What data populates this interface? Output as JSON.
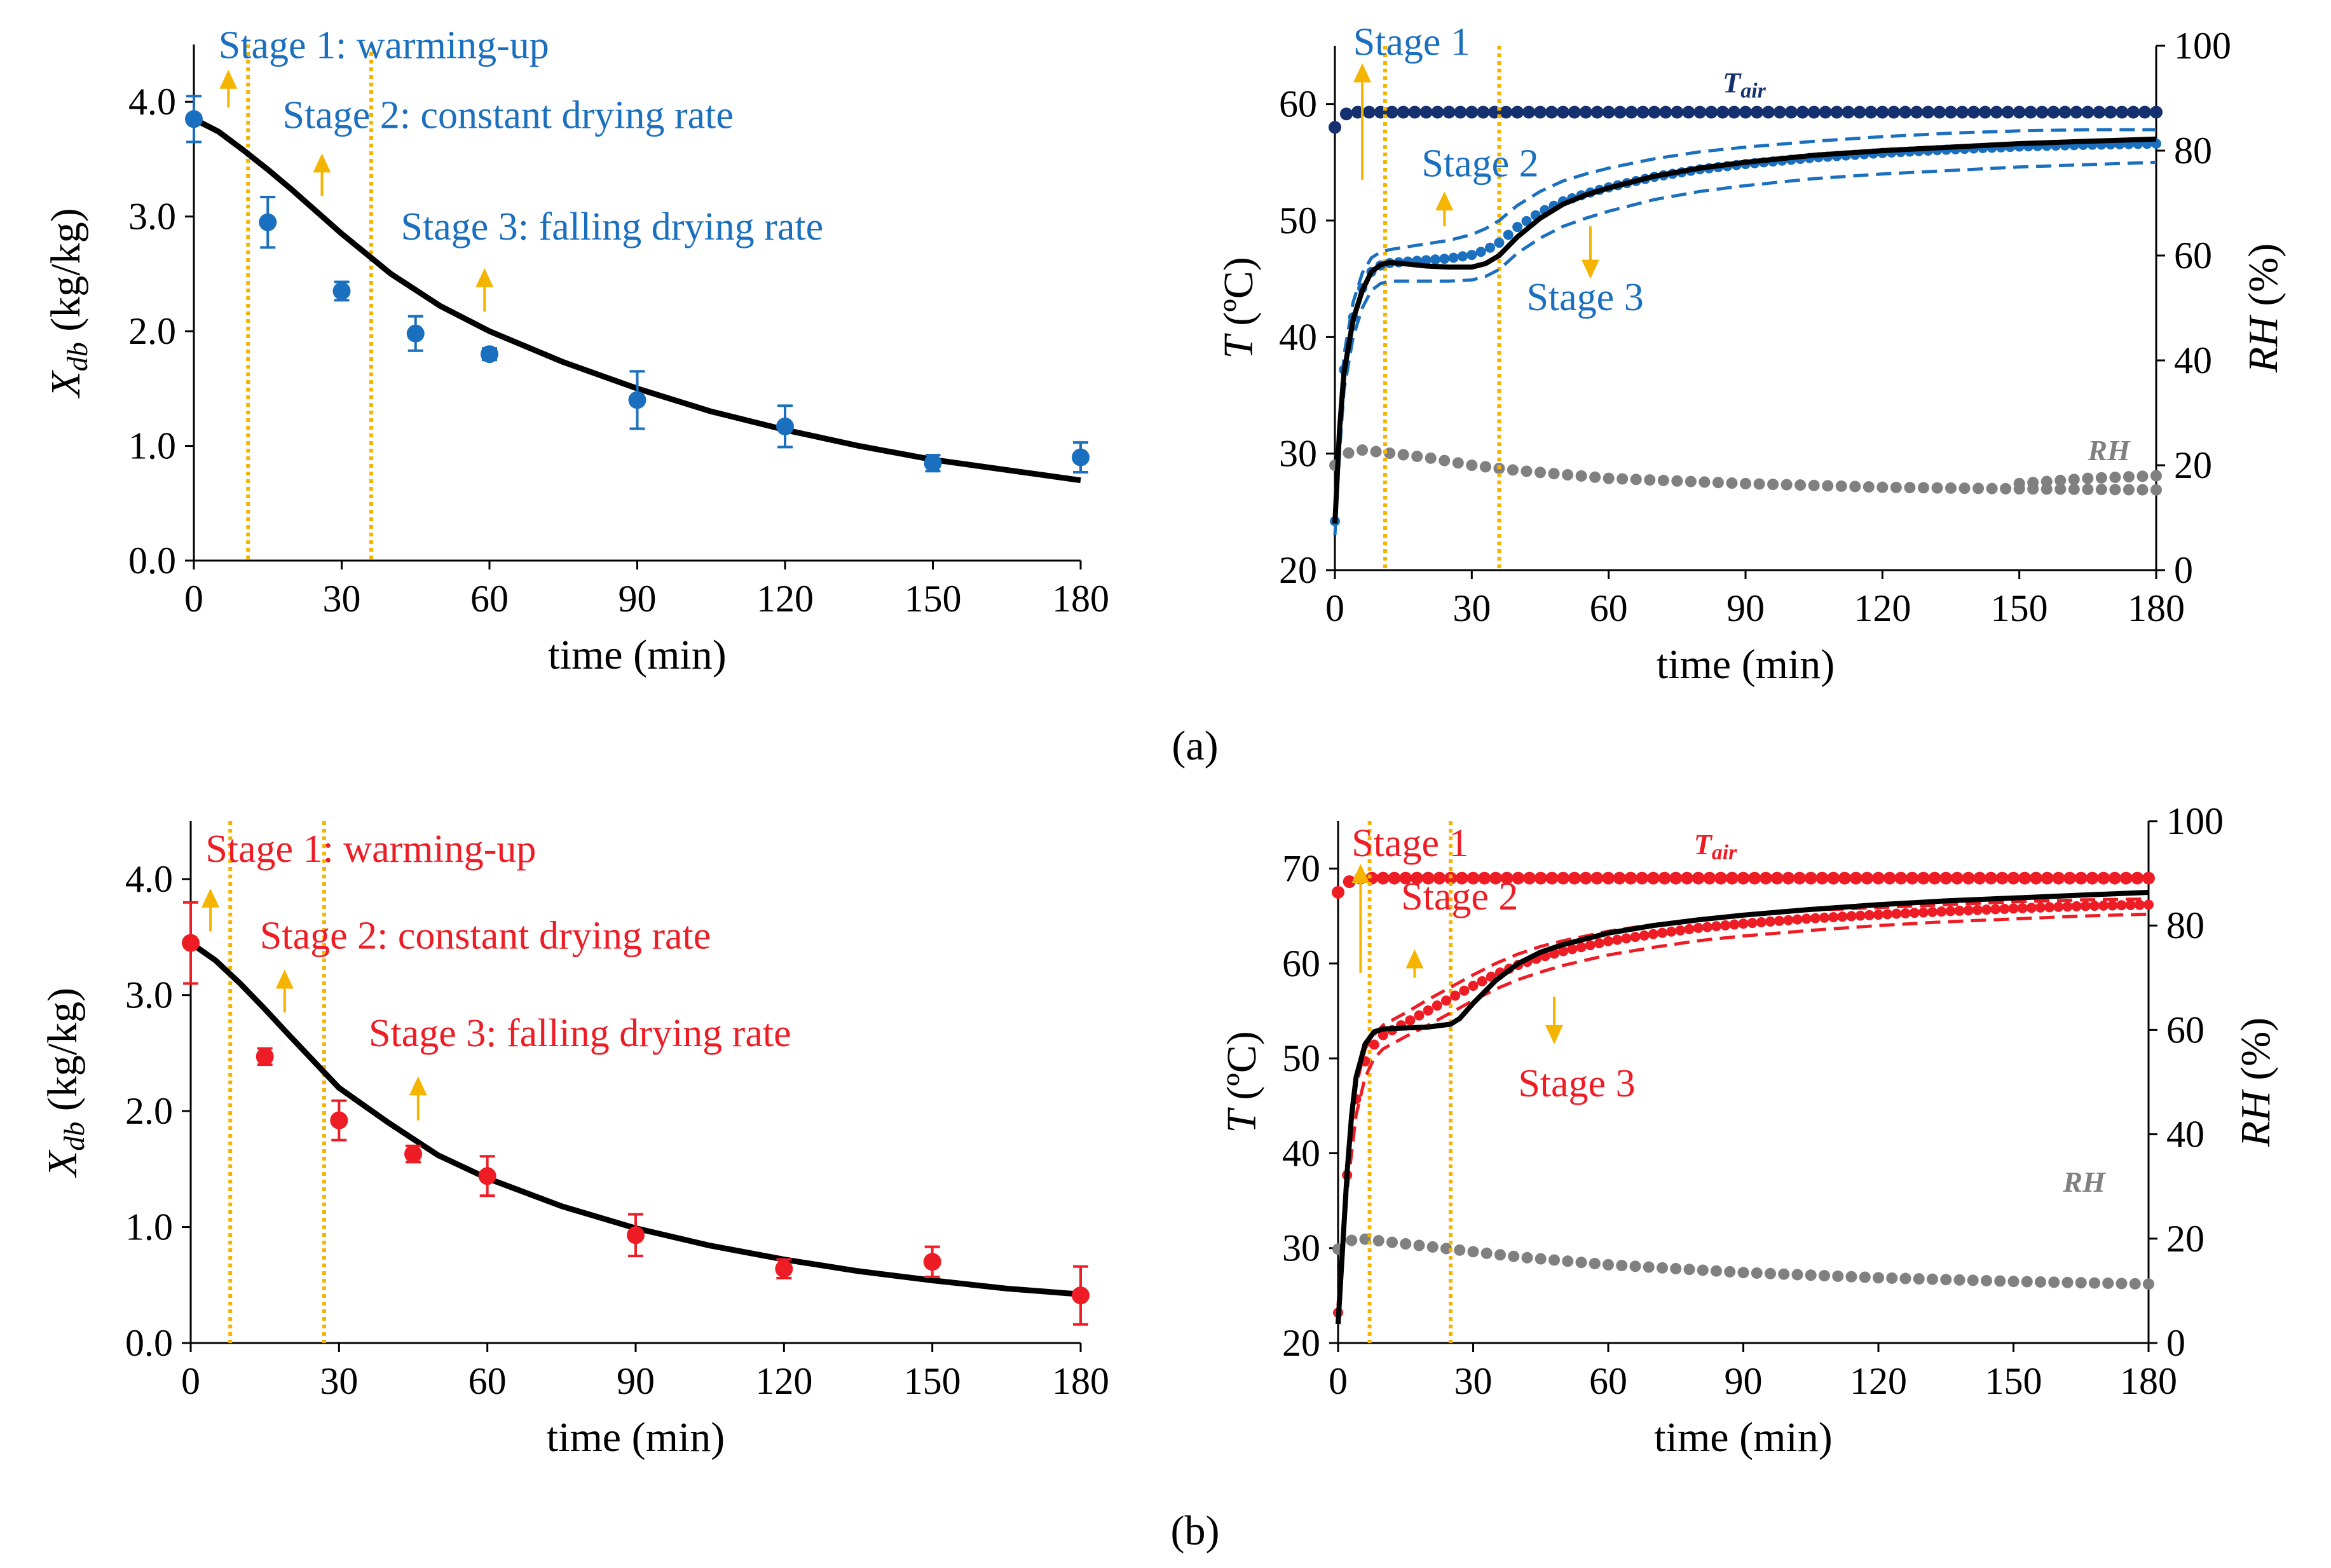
{
  "figure": {
    "panel_a_label": "(a)",
    "panel_b_label": "(b)"
  },
  "chart_data": [
    {
      "id": "a_moisture",
      "type": "scatter",
      "title": "",
      "xlabel": "time (min)",
      "ylabel_main": "X",
      "ylabel_sub": "db",
      "ylabel_unit": " (kg/kg)",
      "xlim": [
        0,
        180
      ],
      "ylim": [
        0,
        4.5
      ],
      "xticks": [
        0,
        30,
        60,
        90,
        120,
        150,
        180
      ],
      "yticks": [
        0,
        1,
        2,
        3,
        4
      ],
      "ytick_labels": [
        "0.0",
        "1.0",
        "2.0",
        "3.0",
        "4.0"
      ],
      "color": "#1a6fbf",
      "stage_lines": [
        11,
        36
      ],
      "stage_labels": [
        {
          "text": "Stage 1: warming-up",
          "x": 5,
          "y": 4.38
        },
        {
          "text": "Stage 2: constant drying rate",
          "x": 18,
          "y": 3.77
        },
        {
          "text": "Stage 3: falling drying rate",
          "x": 42,
          "y": 2.8
        }
      ],
      "arrows": [
        {
          "x": 7,
          "y1": 3.95,
          "y2": 4.28
        },
        {
          "x": 26,
          "y1": 3.18,
          "y2": 3.55
        },
        {
          "x": 59,
          "y1": 2.17,
          "y2": 2.55
        }
      ],
      "series": [
        {
          "name": "experimental",
          "x": [
            0,
            15,
            30,
            45,
            60,
            90,
            120,
            150,
            180
          ],
          "y": [
            3.85,
            2.95,
            2.35,
            1.98,
            1.8,
            1.4,
            1.17,
            0.85,
            0.9
          ],
          "err": [
            0.2,
            0.22,
            0.08,
            0.15,
            0.05,
            0.25,
            0.18,
            0.07,
            0.13
          ]
        },
        {
          "name": "model",
          "x": [
            0,
            5,
            10,
            15,
            20,
            30,
            40,
            50,
            60,
            75,
            90,
            105,
            120,
            135,
            150,
            165,
            180
          ],
          "y": [
            3.85,
            3.74,
            3.58,
            3.41,
            3.23,
            2.85,
            2.5,
            2.22,
            2.0,
            1.73,
            1.5,
            1.3,
            1.14,
            1.0,
            0.88,
            0.79,
            0.7
          ]
        }
      ]
    },
    {
      "id": "a_temperature",
      "type": "line",
      "title": "",
      "xlabel": "time (min)",
      "ylabel_left": "T (ºC)",
      "ylabel_right": "RH (%)",
      "xlim": [
        0,
        180
      ],
      "ylim_left": [
        20,
        65
      ],
      "ylim_right": [
        0,
        100
      ],
      "xticks": [
        0,
        30,
        60,
        90,
        120,
        150,
        180
      ],
      "yticks_left": [
        20,
        30,
        40,
        50,
        60
      ],
      "yticks_right": [
        0,
        20,
        40,
        60,
        80,
        100
      ],
      "dark_color": "#14306e",
      "accent_color": "#1a6fbf",
      "rh_color": "#808080",
      "stage_lines": [
        11,
        36
      ],
      "stage_labels": [
        {
          "text": "Stage 1",
          "x": 4,
          "y": 64.2
        },
        {
          "text": "Stage 2",
          "x": 19,
          "y": 53.8
        },
        {
          "text": "Stage 3",
          "x": 42,
          "y": 42.3
        }
      ],
      "arrows": [
        {
          "x": 6,
          "y1": 53.5,
          "y2": 63.5
        },
        {
          "x": 24,
          "y1": 49.5,
          "y2": 52.5
        },
        {
          "x": 56,
          "y1": 49.5,
          "y2": 45.0
        }
      ],
      "tair_label_main": "T",
      "tair_label_sub": "air",
      "tair_label_pos": {
        "x": 85,
        "y": 61
      },
      "rh_label": "RH",
      "rh_label_pos": {
        "x": 165,
        "y": 21
      },
      "series": [
        {
          "name": "Tair",
          "x": [
            0,
            1,
            2,
            3,
            6,
            180
          ],
          "y": [
            58.0,
            58.5,
            59.0,
            59.3,
            59.3,
            59.3
          ]
        },
        {
          "name": "model",
          "x": [
            0,
            1,
            2,
            4,
            6,
            8,
            10,
            12,
            15,
            20,
            25,
            30,
            33,
            36,
            40,
            45,
            50,
            55,
            60,
            70,
            80,
            90,
            105,
            120,
            135,
            150,
            165,
            180
          ],
          "y": [
            24,
            32,
            37,
            41.5,
            44,
            45.6,
            46.2,
            46.4,
            46.3,
            46.1,
            46.0,
            46.0,
            46.3,
            47.0,
            48.6,
            50.2,
            51.4,
            52.2,
            52.8,
            53.8,
            54.5,
            55.0,
            55.6,
            56.0,
            56.3,
            56.6,
            56.8,
            57.0
          ]
        },
        {
          "name": "upper",
          "x": [
            0,
            1,
            2,
            4,
            6,
            8,
            10,
            12,
            15,
            20,
            25,
            30,
            33,
            36,
            40,
            45,
            50,
            55,
            60,
            70,
            80,
            90,
            105,
            120,
            135,
            150,
            165,
            180
          ],
          "y": [
            25,
            33,
            38.5,
            43,
            45.5,
            46.8,
            47.3,
            47.5,
            47.7,
            48.0,
            48.3,
            48.8,
            49.3,
            50.0,
            51.3,
            52.5,
            53.4,
            54.0,
            54.5,
            55.3,
            55.9,
            56.3,
            56.8,
            57.2,
            57.5,
            57.7,
            57.8,
            57.8
          ]
        },
        {
          "name": "lower",
          "x": [
            0,
            1,
            2,
            4,
            6,
            8,
            10,
            12,
            15,
            20,
            25,
            30,
            33,
            36,
            40,
            45,
            50,
            55,
            60,
            70,
            80,
            90,
            105,
            120,
            135,
            150,
            165,
            180
          ],
          "y": [
            23,
            30,
            35.5,
            40.0,
            42.5,
            44.0,
            44.6,
            44.8,
            44.8,
            44.8,
            44.8,
            44.9,
            45.2,
            45.8,
            47.2,
            48.5,
            49.5,
            50.2,
            50.8,
            51.8,
            52.5,
            53.0,
            53.6,
            54.0,
            54.3,
            54.6,
            54.8,
            55.0
          ]
        },
        {
          "name": "RH",
          "x": [
            0,
            2,
            5,
            10,
            20,
            30,
            40,
            60,
            90,
            120,
            150,
            180
          ],
          "y": [
            20,
            22,
            23,
            22.5,
            21.5,
            20,
            19,
            17.5,
            16.5,
            15.8,
            15.5,
            15.3
          ]
        },
        {
          "name": "RH2",
          "x": [
            150,
            165,
            180
          ],
          "y": [
            16.5,
            17.5,
            18
          ]
        }
      ]
    },
    {
      "id": "b_moisture",
      "type": "scatter",
      "title": "",
      "xlabel": "time (min)",
      "ylabel_main": "X",
      "ylabel_sub": "db",
      "ylabel_unit": " (kg/kg)",
      "xlim": [
        0,
        180
      ],
      "ylim": [
        0,
        4.5
      ],
      "xticks": [
        0,
        30,
        60,
        90,
        120,
        150,
        180
      ],
      "yticks": [
        0,
        1,
        2,
        3,
        4
      ],
      "ytick_labels": [
        "0.0",
        "1.0",
        "2.0",
        "3.0",
        "4.0"
      ],
      "color": "#ee1c24",
      "stage_lines": [
        8,
        27
      ],
      "stage_labels": [
        {
          "text": "Stage 1: warming-up",
          "x": 3,
          "y": 4.15
        },
        {
          "text": "Stage 2: constant drying rate",
          "x": 14,
          "y": 3.4
        },
        {
          "text": "Stage 3: falling drying rate",
          "x": 36,
          "y": 2.56
        }
      ],
      "arrows": [
        {
          "x": 4,
          "y1": 3.55,
          "y2": 3.92
        },
        {
          "x": 19,
          "y1": 2.85,
          "y2": 3.22
        },
        {
          "x": 46,
          "y1": 1.92,
          "y2": 2.3
        }
      ],
      "series": [
        {
          "name": "experimental",
          "x": [
            0,
            15,
            30,
            45,
            60,
            90,
            120,
            150,
            180
          ],
          "y": [
            3.45,
            2.47,
            1.92,
            1.63,
            1.44,
            0.93,
            0.64,
            0.7,
            0.41
          ],
          "err": [
            0.35,
            0.07,
            0.17,
            0.07,
            0.17,
            0.18,
            0.08,
            0.13,
            0.25
          ]
        },
        {
          "name": "model",
          "x": [
            0,
            5,
            10,
            15,
            20,
            30,
            40,
            50,
            60,
            75,
            90,
            105,
            120,
            135,
            150,
            165,
            180
          ],
          "y": [
            3.45,
            3.3,
            3.1,
            2.88,
            2.65,
            2.2,
            1.9,
            1.62,
            1.42,
            1.18,
            0.99,
            0.84,
            0.72,
            0.62,
            0.54,
            0.47,
            0.42
          ]
        }
      ]
    },
    {
      "id": "b_temperature",
      "type": "line",
      "title": "",
      "xlabel": "time (min)",
      "ylabel_left": "T (ºC)",
      "ylabel_right": "RH (%)",
      "xlim": [
        0,
        180
      ],
      "ylim_left": [
        20,
        75
      ],
      "ylim_right": [
        0,
        100
      ],
      "xticks": [
        0,
        30,
        60,
        90,
        120,
        150,
        180
      ],
      "yticks_left": [
        20,
        30,
        40,
        50,
        60,
        70
      ],
      "yticks_right": [
        0,
        20,
        40,
        60,
        80,
        100
      ],
      "dark_color": "#ee1c24",
      "accent_color": "#ee1c24",
      "rh_color": "#808080",
      "stage_lines": [
        7,
        25
      ],
      "stage_labels": [
        {
          "text": "Stage 1",
          "x": 3,
          "y": 71.3
        },
        {
          "text": "Stage 2",
          "x": 14,
          "y": 65.7
        },
        {
          "text": "Stage 3",
          "x": 40,
          "y": 46.0
        }
      ],
      "arrows": [
        {
          "x": 5,
          "y1": 59.0,
          "y2": 70.5
        },
        {
          "x": 17,
          "y1": 58.5,
          "y2": 61.5
        },
        {
          "x": 48,
          "y1": 56.5,
          "y2": 51.5
        }
      ],
      "tair_label_main": "T",
      "tair_label_sub": "air",
      "tair_label_pos": {
        "x": 79,
        "y": 71.5
      },
      "rh_label": "RH",
      "rh_label_pos": {
        "x": 161,
        "y": 29
      },
      "series": [
        {
          "name": "Tair",
          "x": [
            0,
            2,
            4,
            180
          ],
          "y": [
            67.5,
            68.5,
            69.0,
            69.0
          ]
        },
        {
          "name": "model",
          "x": [
            0,
            1,
            2,
            3,
            4,
            6,
            8,
            10,
            15,
            20,
            25,
            27,
            30,
            35,
            40,
            45,
            50,
            60,
            70,
            80,
            90,
            105,
            120,
            135,
            150,
            165,
            180
          ],
          "y": [
            22,
            30,
            38,
            44,
            48,
            51.5,
            52.8,
            53.1,
            53.2,
            53.3,
            53.6,
            54.2,
            55.8,
            58.2,
            60.0,
            61.2,
            62.0,
            63.2,
            64.0,
            64.6,
            65.1,
            65.7,
            66.2,
            66.6,
            66.9,
            67.2,
            67.5
          ]
        },
        {
          "name": "upper",
          "x": [
            0,
            2,
            4,
            6,
            8,
            10,
            15,
            20,
            25,
            30,
            35,
            40,
            45,
            50,
            60,
            70,
            80,
            90,
            105,
            120,
            135,
            150,
            165,
            180
          ],
          "y": [
            24,
            39,
            47,
            51,
            52.5,
            53.5,
            54.8,
            56.2,
            57.5,
            58.8,
            60.0,
            61.0,
            61.8,
            62.4,
            63.4,
            64.1,
            64.7,
            65.1,
            65.6,
            65.9,
            66.2,
            66.5,
            66.7,
            66.8
          ]
        },
        {
          "name": "lower",
          "x": [
            0,
            2,
            4,
            6,
            8,
            10,
            15,
            20,
            25,
            30,
            35,
            40,
            45,
            50,
            60,
            70,
            80,
            90,
            105,
            120,
            135,
            150,
            165,
            180
          ],
          "y": [
            22,
            36,
            44,
            48,
            50,
            51,
            52.3,
            53.5,
            54.8,
            56.1,
            57.3,
            58.3,
            59.1,
            59.8,
            60.9,
            61.7,
            62.4,
            62.9,
            63.5,
            64.0,
            64.4,
            64.7,
            65.0,
            65.2
          ]
        },
        {
          "name": "RH",
          "x": [
            0,
            2,
            5,
            10,
            20,
            30,
            40,
            60,
            90,
            120,
            150,
            180
          ],
          "y": [
            18,
            19.5,
            20,
            19.5,
            18.5,
            17.5,
            16.5,
            15,
            13.5,
            12.5,
            11.8,
            11.3
          ]
        }
      ]
    }
  ]
}
